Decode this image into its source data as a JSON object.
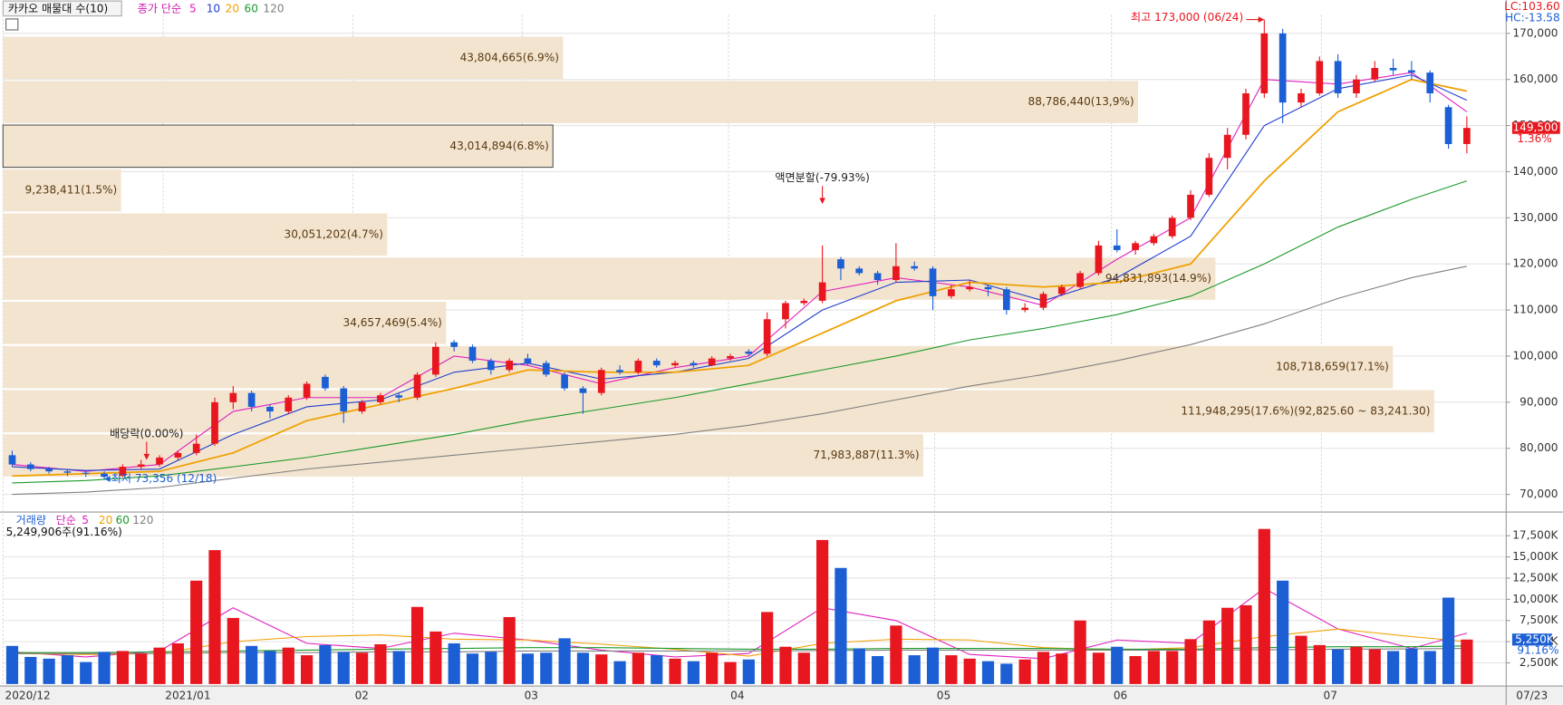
{
  "chart_data": [
    {
      "type": "candlestick",
      "title": "카카오 매물대 수(10)",
      "ma_label": "종가 단순",
      "lc": "LC:103.60",
      "hc": "HC:-13.58",
      "last_price": {
        "value": 149500,
        "label": "149,500"
      },
      "change_label": "1.36%",
      "last_date": "07/23",
      "up_color": "#e8161e",
      "down_color": "#1c5fd4",
      "xlim": [
        -0.5,
        80
      ],
      "xticks": [
        {
          "value": -0.5,
          "label": "2020/12"
        },
        {
          "value": 8.2,
          "label": "2021/01"
        },
        {
          "value": 18.5,
          "label": "02"
        },
        {
          "value": 27.7,
          "label": "03"
        },
        {
          "value": 38.9,
          "label": "04"
        },
        {
          "value": 50.1,
          "label": "05"
        },
        {
          "value": 59.7,
          "label": "06"
        },
        {
          "value": 71.1,
          "label": "07"
        }
      ],
      "ylim": [
        66500,
        174000
      ],
      "yticks": [
        {
          "value": 70000,
          "label": "70,000"
        },
        {
          "value": 80000,
          "label": "80,000"
        },
        {
          "value": 90000,
          "label": "90,000"
        },
        {
          "value": 100000,
          "label": "100,000"
        },
        {
          "value": 110000,
          "label": "110,000"
        },
        {
          "value": 120000,
          "label": "120,000"
        },
        {
          "value": 130000,
          "label": "130,000"
        },
        {
          "value": 140000,
          "label": "140,000"
        },
        {
          "value": 150000,
          "label": "150,000"
        },
        {
          "value": 160000,
          "label": "160,000"
        },
        {
          "value": 170000,
          "label": "170,000"
        }
      ],
      "grid": true,
      "open": [
        78500,
        76500,
        75500,
        75000,
        74700,
        74500,
        74000,
        76000,
        76500,
        78000,
        79000,
        81000,
        90000,
        92000,
        89000,
        88000,
        91000,
        95500,
        93000,
        88000,
        90000,
        91500,
        91000,
        96000,
        103000,
        102000,
        99000,
        97000,
        99500,
        98500,
        96000,
        93000,
        92000,
        97000,
        96500,
        99000,
        98000,
        98500,
        98000,
        99500,
        101000,
        100500,
        108000,
        111500,
        112000,
        121000,
        119000,
        118000,
        116500,
        119500,
        119000,
        113000,
        114500,
        115000,
        114500,
        110000,
        110500,
        113500,
        115000,
        118000,
        124000,
        123000,
        124500,
        126000,
        130000,
        135000,
        143000,
        148000,
        157000,
        170000,
        155000,
        157000,
        164000,
        157000,
        160000,
        162500,
        162000,
        161500,
        154000,
        146000
      ],
      "high": [
        79500,
        77000,
        76000,
        75500,
        75200,
        75000,
        76500,
        77500,
        78500,
        79500,
        83000,
        91000,
        93500,
        92500,
        89500,
        91500,
        94500,
        96000,
        93500,
        90500,
        92000,
        92000,
        96500,
        103000,
        103500,
        102500,
        99500,
        99500,
        100500,
        99000,
        96500,
        93500,
        97500,
        98000,
        99500,
        99500,
        99000,
        99000,
        100000,
        100500,
        101500,
        109500,
        112000,
        112500,
        124000,
        121500,
        119500,
        118500,
        124500,
        120500,
        119500,
        115500,
        116500,
        115500,
        115000,
        111500,
        114000,
        115500,
        118500,
        125000,
        127500,
        125000,
        126500,
        130500,
        136000,
        144000,
        149500,
        158000,
        173000,
        171000,
        158000,
        165000,
        165500,
        161000,
        164000,
        164500,
        164000,
        162000,
        154500,
        152000
      ],
      "low": [
        76000,
        75000,
        74500,
        74000,
        73800,
        73356,
        73800,
        75500,
        76000,
        77500,
        78500,
        80500,
        88500,
        88000,
        86500,
        87500,
        90500,
        92500,
        85500,
        87500,
        89500,
        90000,
        90500,
        95500,
        101000,
        98500,
        96000,
        96500,
        98000,
        95500,
        92500,
        87500,
        91500,
        96000,
        96000,
        97500,
        97500,
        97500,
        97800,
        99000,
        100000,
        100000,
        106000,
        111000,
        111500,
        116500,
        117500,
        115500,
        116000,
        118500,
        110000,
        112500,
        114000,
        113000,
        109000,
        109500,
        110000,
        113000,
        114500,
        117500,
        122500,
        122000,
        124000,
        125500,
        129500,
        134500,
        140500,
        147000,
        156000,
        150500,
        154000,
        156500,
        156000,
        156000,
        159500,
        161000,
        160000,
        155000,
        145000,
        144000
      ],
      "close": [
        76500,
        75500,
        75000,
        74700,
        74500,
        73800,
        76000,
        76500,
        78000,
        79000,
        81000,
        90000,
        92000,
        89000,
        88000,
        91000,
        94000,
        93000,
        88000,
        90000,
        91500,
        91000,
        96000,
        102000,
        102000,
        99000,
        97000,
        99000,
        98500,
        96000,
        93000,
        92000,
        97000,
        96500,
        99000,
        98000,
        98500,
        98000,
        99500,
        100000,
        100500,
        108000,
        111500,
        112000,
        116000,
        119000,
        118000,
        116500,
        119500,
        119000,
        113000,
        114500,
        115000,
        114500,
        110000,
        110500,
        113500,
        115000,
        118000,
        124000,
        123000,
        124500,
        126000,
        130000,
        135000,
        143000,
        148000,
        157000,
        170000,
        155000,
        157000,
        164000,
        157000,
        160000,
        162500,
        162000,
        161500,
        157000,
        146000,
        149500
      ],
      "ma_x": [
        0,
        4,
        8,
        12,
        16,
        20,
        24,
        28,
        32,
        36,
        40,
        44,
        48,
        52,
        56,
        60,
        64,
        68,
        72,
        76,
        79
      ],
      "ma": [
        {
          "name": "5",
          "color": "#e020c0",
          "values": [
            76500,
            75000,
            76500,
            88000,
            91000,
            91000,
            100000,
            98000,
            94000,
            97500,
            100000,
            114000,
            117000,
            115000,
            111000,
            121000,
            130000,
            160000,
            159000,
            161500,
            153000
          ]
        },
        {
          "name": "10",
          "color": "#1f3fd0",
          "values": [
            76000,
            75200,
            75500,
            83000,
            89000,
            90500,
            96500,
            98500,
            95000,
            96500,
            99500,
            110000,
            116000,
            116500,
            112000,
            117000,
            126000,
            150000,
            158000,
            161000,
            155500
          ]
        },
        {
          "name": "20",
          "color": "#f0a000",
          "values": [
            74000,
            74500,
            75000,
            79000,
            86000,
            89500,
            93000,
            97000,
            96500,
            96500,
            98000,
            105000,
            112000,
            116000,
            115000,
            116000,
            120000,
            138000,
            153000,
            160000,
            157500
          ]
        },
        {
          "name": "60",
          "color": "#1a9a2a",
          "values": [
            72500,
            73000,
            74000,
            76000,
            78000,
            80500,
            83000,
            86000,
            88500,
            91000,
            94000,
            97000,
            100000,
            103500,
            106000,
            109000,
            113000,
            120000,
            128000,
            134000,
            138000
          ]
        },
        {
          "name": "120",
          "color": "#808080",
          "values": [
            70000,
            70500,
            71500,
            73500,
            75500,
            77000,
            78500,
            80000,
            81500,
            83000,
            85000,
            87500,
            90500,
            93500,
            96000,
            99000,
            102500,
            107000,
            112500,
            117000,
            119500
          ]
        }
      ],
      "profile": {
        "xlim": [
          0,
          117500000
        ],
        "color": "#f3e4cf",
        "edges": [
          73657,
          83241.3,
          92825.6,
          102409.9,
          111994.2,
          121578.5,
          131162.8,
          140747.1,
          150331.4,
          159915.7,
          169500
        ],
        "values": [
          71983887,
          111948295,
          108718659,
          34657469,
          94831893,
          30051202,
          9238411,
          43014894,
          88786440,
          43804665
        ],
        "value_labels": [
          "71,983,887(11.3%)",
          "111,948,295(17.6%)(92,825.60 ~ 83,241.30)",
          "108,718,659(17.1%)",
          "34,657,469(5.4%)",
          "94,831,893(14.9%)",
          "30,051,202(4.7%)",
          "9,238,411(1.5%)",
          "43,014,894(6.8%)",
          "88,786,440(13,9%)",
          "43,804,665(6.9%)"
        ]
      },
      "annotations": [
        {
          "label": "최고 173,000 (06/24)",
          "x": 68,
          "y": 173000
        },
        {
          "label": "최저 73,356 (12/18)",
          "x": 5,
          "y": 73356
        },
        {
          "label": "배당락(0.00%)",
          "x": 7.3,
          "y": 77500
        },
        {
          "label": "액면분할(-79.93%)",
          "x": 44,
          "y": 133000
        }
      ]
    },
    {
      "type": "bar",
      "title": "거래량",
      "ma_label": "단순",
      "subtitle": "5,249,906주(91.16%)",
      "last_volume": {
        "value": 5250,
        "label": "5,250K"
      },
      "last_ratio": "91.16%",
      "ylim": [
        0,
        20000
      ],
      "yticks": [
        {
          "value": 2500,
          "label": "2,500K"
        },
        {
          "value": 5000,
          "label": "5,000K"
        },
        {
          "value": 7500,
          "label": "7,500K"
        },
        {
          "value": 10000,
          "label": "10,000K"
        },
        {
          "value": 12500,
          "label": "12,500K"
        },
        {
          "value": 15000,
          "label": "15,000K"
        },
        {
          "value": 17500,
          "label": "17,500K"
        }
      ],
      "values": [
        4500,
        3200,
        3000,
        3400,
        2600,
        3800,
        3900,
        3600,
        4300,
        4800,
        12200,
        15800,
        7800,
        4500,
        3900,
        4300,
        3400,
        4600,
        3800,
        3700,
        4700,
        3900,
        9100,
        6200,
        4800,
        3600,
        3800,
        7900,
        3600,
        3700,
        5400,
        3700,
        3500,
        2700,
        3700,
        3400,
        3000,
        2700,
        3700,
        2600,
        2900,
        8500,
        4400,
        3700,
        17000,
        13700,
        4200,
        3300,
        6900,
        3400,
        4300,
        3400,
        3000,
        2700,
        2400,
        2900,
        3800,
        3600,
        7500,
        3700,
        4400,
        3300,
        3900,
        3900,
        5300,
        7500,
        9000,
        9300,
        18300,
        12200,
        5700,
        4600,
        4100,
        4400,
        4100,
        3900,
        4200,
        3900,
        10200,
        5250
      ],
      "ma_x": [
        0,
        4,
        8,
        12,
        16,
        20,
        24,
        28,
        32,
        36,
        40,
        44,
        48,
        52,
        56,
        60,
        64,
        68,
        72,
        76,
        79
      ],
      "ma": [
        {
          "name": "5",
          "color": "#e020c0",
          "values": [
            3800,
            3200,
            3900,
            9000,
            4800,
            4200,
            6000,
            5200,
            4000,
            3200,
            3600,
            9000,
            7500,
            3500,
            3000,
            5200,
            4800,
            11300,
            6500,
            4200,
            6000
          ]
        },
        {
          "name": "20",
          "color": "#f0a000",
          "values": [
            3600,
            3500,
            3600,
            5000,
            5600,
            5800,
            5300,
            5200,
            4700,
            4100,
            3300,
            4800,
            5300,
            5200,
            4300,
            4000,
            4300,
            5600,
            6500,
            5600,
            5000
          ]
        },
        {
          "name": "60",
          "color": "#1a9a2a",
          "values": [
            3700,
            3700,
            3800,
            3900,
            4000,
            4100,
            4200,
            4300,
            4300,
            4200,
            4100,
            4100,
            4200,
            4200,
            4200,
            4100,
            4100,
            4300,
            4400,
            4400,
            4500
          ]
        },
        {
          "name": "120",
          "color": "#808080",
          "values": [
            3600,
            3600,
            3600,
            3700,
            3700,
            3800,
            3800,
            3900,
            3900,
            3900,
            3900,
            3950,
            4000,
            4000,
            4000,
            4000,
            4000,
            4050,
            4100,
            4150,
            4200
          ]
        }
      ]
    }
  ]
}
